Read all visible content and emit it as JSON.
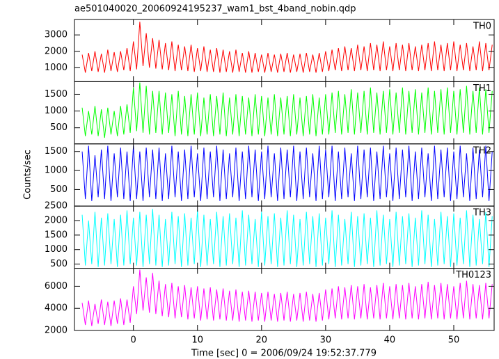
{
  "chart_data": {
    "type": "line",
    "title": "ae501040020_20060924195237_wam1_bst_4band_nobin.qdp",
    "xlabel": "Time [sec] 0 = 2006/09/24 19:52:37.779",
    "ylabel": "Counts/sec",
    "xlim": [
      -9.2,
      56.3
    ],
    "xticks": [
      0,
      10,
      20,
      30,
      40,
      50
    ],
    "x": [
      -8,
      -7.5,
      -7,
      -6.5,
      -6,
      -5.5,
      -5,
      -4.5,
      -4,
      -3.5,
      -3,
      -2.5,
      -2,
      -1.5,
      -1,
      -0.5,
      0,
      0.5,
      1,
      1.5,
      2,
      2.5,
      3,
      3.5,
      4,
      4.5,
      5,
      5.5,
      6,
      6.5,
      7,
      7.5,
      8,
      8.5,
      9,
      9.5,
      10,
      10.5,
      11,
      11.5,
      12,
      12.5,
      13,
      13.5,
      14,
      14.5,
      15,
      15.5,
      16,
      16.5,
      17,
      17.5,
      18,
      18.5,
      19,
      19.5,
      20,
      20.5,
      21,
      21.5,
      22,
      22.5,
      23,
      23.5,
      24,
      24.5,
      25,
      25.5,
      26,
      26.5,
      27,
      27.5,
      28,
      28.5,
      29,
      29.5,
      30,
      30.5,
      31,
      31.5,
      32,
      32.5,
      33,
      33.5,
      34,
      34.5,
      35,
      35.5,
      36,
      36.5,
      37,
      37.5,
      38,
      38.5,
      39,
      39.5,
      40,
      40.5,
      41,
      41.5,
      42,
      42.5,
      43,
      43.5,
      44,
      44.5,
      45,
      45.5,
      46,
      46.5,
      47,
      47.5,
      48,
      48.5,
      49,
      49.5,
      50,
      50.5,
      51,
      51.5,
      52,
      52.5,
      53,
      53.5,
      54,
      54.5,
      55,
      55.5,
      56
    ],
    "series": [
      {
        "name": "TH0",
        "color": "#ff0000",
        "ylim": [
          150,
          3940
        ],
        "yticks": [
          1000,
          2000,
          3000
        ],
        "values": [
          1800,
          700,
          1900,
          800,
          2000,
          750,
          1850,
          700,
          2100,
          800,
          1950,
          750,
          2000,
          850,
          2200,
          800,
          2600,
          900,
          3800,
          1100,
          3100,
          1000,
          2800,
          950,
          2700,
          900,
          2500,
          850,
          2600,
          800,
          2400,
          850,
          2300,
          800,
          2400,
          750,
          2200,
          800,
          2300,
          750,
          2100,
          750,
          2200,
          700,
          2100,
          750,
          2000,
          700,
          2100,
          750,
          1900,
          700,
          2000,
          700,
          1900,
          750,
          1800,
          700,
          1900,
          750,
          1800,
          700,
          1850,
          750,
          1900,
          700,
          1800,
          750,
          1850,
          700,
          1900,
          750,
          1800,
          700,
          1900,
          750,
          2000,
          800,
          2100,
          850,
          2200,
          800,
          2300,
          850,
          2200,
          800,
          2400,
          850,
          2300,
          800,
          2500,
          850,
          2400,
          800,
          2600,
          850,
          2300,
          800,
          2500,
          850,
          2400,
          800,
          2500,
          850,
          2300,
          800,
          2400,
          850,
          2500,
          800,
          2600,
          850,
          2400,
          800,
          2500,
          850,
          2600,
          800,
          2400,
          850,
          2500,
          800,
          2300,
          850,
          2600,
          800,
          2500,
          850,
          2400
        ]
      },
      {
        "name": "TH1",
        "color": "#00ff00",
        "ylim": [
          20,
          1875
        ],
        "yticks": [
          500,
          1000,
          1500
        ],
        "values": [
          1100,
          250,
          1000,
          300,
          1150,
          250,
          1050,
          200,
          1100,
          300,
          1000,
          250,
          1150,
          300,
          1200,
          350,
          1700,
          400,
          1850,
          350,
          1750,
          300,
          1600,
          350,
          1600,
          300,
          1550,
          350,
          1500,
          250,
          1600,
          300,
          1450,
          250,
          1500,
          300,
          1550,
          250,
          1400,
          300,
          1500,
          250,
          1450,
          300,
          1550,
          250,
          1400,
          300,
          1500,
          250,
          1450,
          300,
          1400,
          250,
          1500,
          300,
          1450,
          250,
          1400,
          300,
          1500,
          250,
          1400,
          300,
          1450,
          250,
          1500,
          300,
          1400,
          250,
          1450,
          300,
          1500,
          250,
          1400,
          300,
          1500,
          300,
          1550,
          350,
          1600,
          300,
          1500,
          350,
          1650,
          300,
          1550,
          350,
          1600,
          300,
          1700,
          350,
          1550,
          300,
          1600,
          350,
          1650,
          300,
          1550,
          350,
          1700,
          300,
          1600,
          350,
          1650,
          300,
          1550,
          350,
          1700,
          300,
          1600,
          350,
          1650,
          300,
          1700,
          350,
          1600,
          300,
          1650,
          350,
          1750,
          300,
          1600,
          350,
          1700,
          300,
          1650,
          350,
          1600
        ]
      },
      {
        "name": "TH2",
        "color": "#0000ff",
        "ylim": [
          65,
          1700
        ],
        "yticks": [
          500,
          1000,
          1500
        ],
        "values": [
          1500,
          250,
          1650,
          200,
          1400,
          300,
          1550,
          250,
          1650,
          200,
          1450,
          300,
          1600,
          250,
          1500,
          200,
          1650,
          250,
          1500,
          200,
          1600,
          300,
          1550,
          250,
          1600,
          200,
          1450,
          250,
          1650,
          300,
          1500,
          200,
          1550,
          250,
          1650,
          300,
          1450,
          200,
          1600,
          250,
          1500,
          300,
          1650,
          200,
          1550,
          250,
          1450,
          300,
          1600,
          200,
          1500,
          250,
          1650,
          300,
          1550,
          200,
          1500,
          250,
          1650,
          300,
          1450,
          200,
          1600,
          250,
          1550,
          300,
          1650,
          200,
          1500,
          250,
          1600,
          300,
          1450,
          200,
          1650,
          250,
          1550,
          300,
          1650,
          200,
          1500,
          250,
          1600,
          300,
          1450,
          200,
          1650,
          250,
          1550,
          300,
          1600,
          200,
          1500,
          250,
          1650,
          300,
          1450,
          200,
          1600,
          250,
          1550,
          300,
          1650,
          200,
          1500,
          250,
          1600,
          300,
          1450,
          200,
          1650,
          250,
          1550,
          300,
          1600,
          200,
          1500,
          250,
          1650,
          300,
          1450,
          200,
          1600,
          250,
          1550,
          300,
          1650,
          200,
          1500
        ]
      },
      {
        "name": "TH3",
        "color": "#00ffff",
        "ylim": [
          355,
          2500
        ],
        "yticks": [
          500,
          1000,
          1500,
          2000,
          2500
        ],
        "values": [
          2200,
          450,
          2000,
          500,
          2300,
          400,
          2100,
          450,
          2250,
          500,
          2050,
          400,
          2200,
          450,
          2350,
          500,
          2100,
          450,
          2300,
          400,
          2200,
          500,
          2400,
          450,
          2200,
          400,
          2050,
          450,
          2300,
          500,
          2150,
          400,
          2250,
          450,
          2100,
          500,
          2350,
          400,
          2200,
          450,
          2050,
          500,
          2300,
          400,
          2150,
          450,
          2250,
          500,
          2100,
          400,
          2350,
          450,
          2200,
          500,
          2050,
          400,
          2300,
          450,
          2150,
          500,
          2250,
          400,
          2100,
          450,
          2350,
          500,
          2200,
          400,
          2050,
          450,
          2300,
          500,
          2150,
          400,
          2250,
          450,
          2100,
          500,
          2350,
          400,
          2200,
          450,
          2050,
          500,
          2300,
          400,
          2150,
          450,
          2250,
          500,
          2100,
          400,
          2350,
          450,
          2200,
          500,
          2050,
          400,
          2300,
          450,
          2150,
          500,
          2250,
          400,
          2100,
          450,
          2350,
          500,
          2200,
          400,
          2050,
          450,
          2300,
          500,
          2150,
          400,
          2250,
          450,
          2100,
          500,
          2350,
          400,
          2200,
          450,
          2050,
          500,
          2300,
          400,
          2150
        ]
      },
      {
        "name": "TH0123",
        "color": "#ff00ff",
        "ylim": [
          2000,
          7625
        ],
        "yticks": [
          2000,
          4000,
          6000
        ],
        "values": [
          4500,
          2500,
          4700,
          2400,
          4400,
          2600,
          4800,
          2500,
          4600,
          2400,
          4700,
          2600,
          4900,
          2500,
          4800,
          2700,
          6000,
          3500,
          7500,
          3800,
          6800,
          3600,
          7200,
          3500,
          6500,
          3300,
          6200,
          3200,
          6300,
          3100,
          6000,
          3200,
          6100,
          3000,
          5900,
          3100,
          6000,
          2900,
          5800,
          3000,
          5900,
          2900,
          5700,
          3000,
          5800,
          2900,
          5600,
          2900,
          5700,
          2800,
          5500,
          2900,
          5600,
          2800,
          5500,
          2900,
          5400,
          2800,
          5500,
          2900,
          5300,
          2800,
          5400,
          2900,
          5500,
          2800,
          5300,
          2900,
          5400,
          2800,
          5500,
          2900,
          5300,
          2800,
          5400,
          2900,
          5700,
          3000,
          5800,
          3100,
          6000,
          3000,
          5900,
          3100,
          6100,
          3000,
          6000,
          3100,
          6200,
          3000,
          5900,
          3100,
          6100,
          3000,
          6300,
          3100,
          6000,
          3000,
          6200,
          3100,
          6100,
          3000,
          6300,
          3100,
          6000,
          3000,
          6200,
          3100,
          6400,
          3000,
          6100,
          3100,
          6300,
          3000,
          6200,
          3100,
          6000,
          3000,
          6300,
          3100,
          6500,
          3000,
          6200,
          3100,
          6100,
          3000,
          6300,
          3100,
          6200
        ]
      }
    ]
  }
}
